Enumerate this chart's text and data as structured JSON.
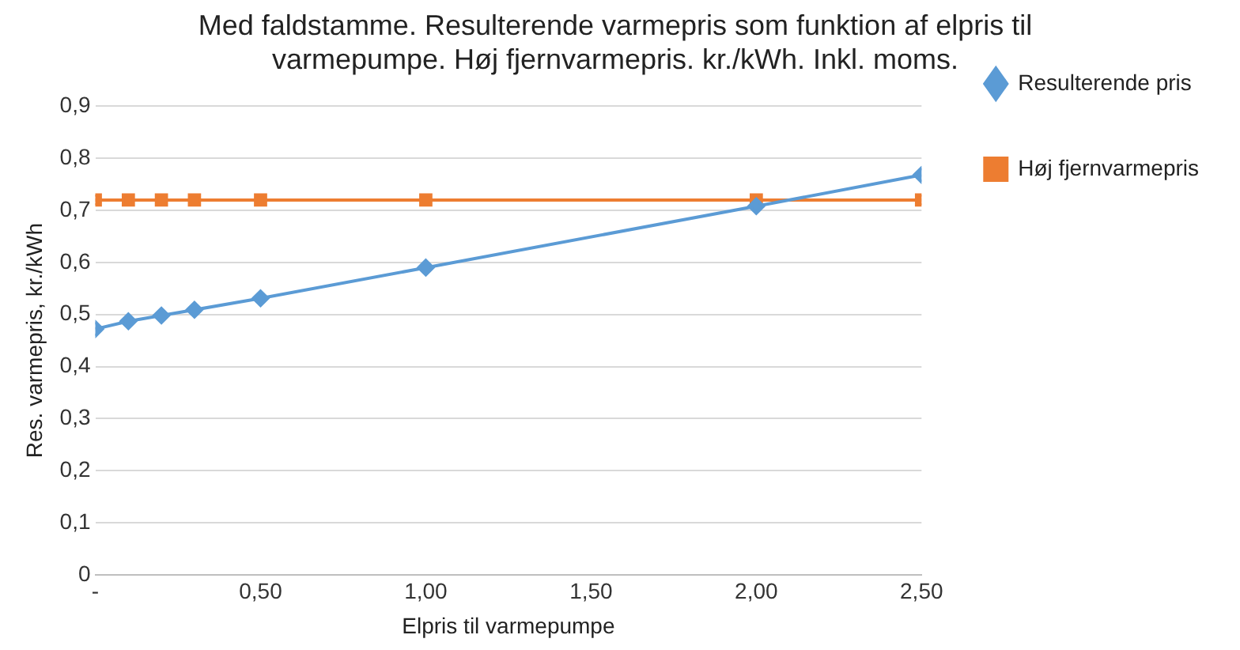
{
  "chart_data": {
    "type": "line",
    "title": "Med faldstamme. Resulterende varmepris som funktion af elpris til varmepumpe. Høj fjernvarmepris. kr./kWh. Inkl. moms.",
    "xlabel": "Elpris til varmepumpe",
    "ylabel": "Res. varmepris, kr./kWh",
    "x": [
      0,
      0.1,
      0.2,
      0.3,
      0.5,
      1.0,
      2.0,
      2.5
    ],
    "series": [
      {
        "name": "Resulterende pris",
        "color": "#5b9bd5",
        "marker": "diamond",
        "values": [
          0.472,
          0.487,
          0.498,
          0.509,
          0.531,
          0.59,
          0.708,
          0.768
        ]
      },
      {
        "name": "Høj fjernvarmepris",
        "color": "#ed7d31",
        "marker": "square",
        "values": [
          0.72,
          0.72,
          0.72,
          0.72,
          0.72,
          0.72,
          0.72,
          0.72
        ]
      }
    ],
    "xlim": [
      0,
      2.5
    ],
    "xticks": [
      {
        "value": 0,
        "label": "-"
      },
      {
        "value": 0.5,
        "label": "0,50"
      },
      {
        "value": 1,
        "label": "1,00"
      },
      {
        "value": 1.5,
        "label": "1,50"
      },
      {
        "value": 2,
        "label": "2,00"
      },
      {
        "value": 2.5,
        "label": "2,50"
      }
    ],
    "ylim": [
      0,
      0.9
    ],
    "yticks": [
      {
        "value": 0,
        "label": "0"
      },
      {
        "value": 0.1,
        "label": "0,1"
      },
      {
        "value": 0.2,
        "label": "0,2"
      },
      {
        "value": 0.3,
        "label": "0,3"
      },
      {
        "value": 0.4,
        "label": "0,4"
      },
      {
        "value": 0.5,
        "label": "0,5"
      },
      {
        "value": 0.6,
        "label": "0,6"
      },
      {
        "value": 0.7,
        "label": "0,7"
      },
      {
        "value": 0.8,
        "label": "0,8"
      },
      {
        "value": 0.9,
        "label": "0,9"
      }
    ],
    "grid": "y",
    "legend": "right",
    "line_style": "solid"
  }
}
